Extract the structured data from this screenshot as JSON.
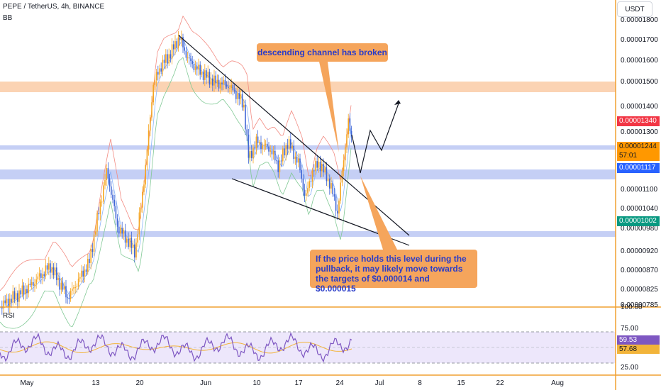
{
  "header": {
    "symbol": "PEPE / TetherUS, 4h, BINANCE",
    "indicator": "BB",
    "currency": "USDT"
  },
  "callouts": {
    "top": "descending channel has broken",
    "bottom": "If the price holds this level during the pullback, it may likely move towards the targets of $0.000014 and $0.000015"
  },
  "price_axis": {
    "ticks": [
      "0.00001800",
      "0.00001700",
      "0.00001600",
      "0.00001500",
      "0.00001400",
      "0.00001300",
      "0.00001200",
      "0.00001100",
      "0.00001040",
      "0.00000980",
      "0.00000920",
      "0.00000870",
      "0.00000825",
      "0.00000785"
    ],
    "tags": {
      "high": "0.00001340",
      "current": "0.00001244",
      "countdown": "57:01",
      "support": "0.00001117",
      "low": "0.00001002"
    },
    "colors": {
      "high": "#f23645",
      "current": "#ff9800",
      "support": "#2962ff",
      "low": "#089981"
    }
  },
  "rsi": {
    "label": "RSI",
    "ticks": [
      "100.00",
      "75.00",
      "25.00"
    ],
    "value": "59.53",
    "ma_value": "57.68"
  },
  "time_axis": [
    "May",
    "13",
    "20",
    "Jun",
    "10",
    "17",
    "24",
    "Jul",
    "8",
    "15",
    "22",
    "Aug"
  ],
  "chart_data": {
    "type": "candlestick",
    "title": "PEPE / TetherUS, 4h, BINANCE",
    "indicators": [
      "BB",
      "RSI"
    ],
    "ylim": [
      7.85e-06,
      1.8e-05
    ],
    "y_scale": "log",
    "x_range": [
      "May",
      "Aug"
    ],
    "series": [
      {
        "name": "close",
        "x": [
          "May",
          "13",
          "20",
          "Jun",
          "10",
          "17",
          "24"
        ],
        "values": [
          7.9e-06,
          9.5e-06,
          1.12e-05,
          1.68e-05,
          1.4e-05,
          1.1e-05,
          1.244e-05
        ]
      }
    ],
    "horizontal_levels": [
      1.5e-05,
      1.244e-05,
      1.117e-05,
      9.6e-06
    ],
    "annotations": [
      "descending channel has broken",
      "If the price holds this level during the pullback, it may likely move towards the targets of $0.000014 and $0.000015"
    ],
    "targets": [
      1.4e-05,
      1.5e-05
    ],
    "rsi": {
      "last": 59.53,
      "ma": 57.68,
      "bands": [
        70,
        30
      ]
    }
  }
}
